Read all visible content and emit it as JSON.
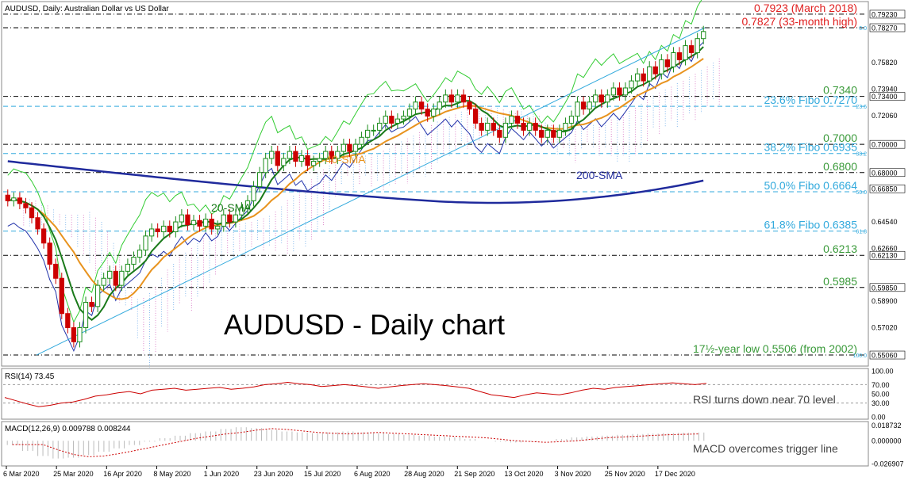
{
  "header": {
    "symbol_label": "AUDUSD, Daily:  Australian Dollar vs US Dollar",
    "big_title": "AUDUSD - Daily chart"
  },
  "colors": {
    "candle_up": "#1a8c1a",
    "candle_down": "#cc0000",
    "sma20": "#1a7a1a",
    "sma40": "#e8931e",
    "sma200": "#1f2a9c",
    "trendline": "#33aadd",
    "fibo": "#33aadd",
    "red_label": "#e02020",
    "green_label": "#3a9a3a",
    "rsi": "#cc0000",
    "macd_signal": "#cc0000",
    "cloud_blue": "#88bbee",
    "cloud_pink": "#dd88cc",
    "envelope_green": "#33cc33"
  },
  "chart_data": [
    {
      "type": "candlestick",
      "panel": "price",
      "ylim": [
        0.545,
        0.799
      ],
      "y_ticks": [
        "0.79230",
        "0.78270",
        "0.75820",
        "0.73940",
        "0.73400",
        "0.72060",
        "0.70000",
        "0.68000",
        "0.66850",
        "0.64540",
        "0.62660",
        "0.62130",
        "0.59850",
        "0.58900",
        "0.57020",
        "0.55060"
      ],
      "y_tick_values": [
        0.7923,
        0.7827,
        0.7582,
        0.7394,
        0.734,
        0.7206,
        0.7,
        0.68,
        0.6685,
        0.6454,
        0.6266,
        0.6213,
        0.5985,
        0.589,
        0.5702,
        0.5506
      ],
      "x_ticks": [
        "6 Mar 2020",
        "25 Mar 2020",
        "16 Apr 2020",
        "8 May 2020",
        "1 Jun 2020",
        "23 Jun 2020",
        "15 Jul 2020",
        "6 Aug 2020",
        "28 Aug 2020",
        "21 Sep 2020",
        "13 Oct 2020",
        "3 Nov 2020",
        "25 Nov 2020",
        "17 Dec 2020"
      ],
      "series": [
        {
          "name": "Close",
          "close": [
            0.66,
            0.662,
            0.658,
            0.655,
            0.648,
            0.64,
            0.63,
            0.615,
            0.605,
            0.58,
            0.57,
            0.56,
            0.57,
            0.588,
            0.585,
            0.6,
            0.605,
            0.61,
            0.6,
            0.61,
            0.615,
            0.62,
            0.625,
            0.635,
            0.64,
            0.638,
            0.642,
            0.638,
            0.645,
            0.65,
            0.643,
            0.646,
            0.642,
            0.647,
            0.64,
            0.642,
            0.65,
            0.645,
            0.65,
            0.655,
            0.66,
            0.67,
            0.68,
            0.69,
            0.695,
            0.685,
            0.69,
            0.695,
            0.688,
            0.692,
            0.685,
            0.688,
            0.69,
            0.695,
            0.69,
            0.695,
            0.7,
            0.695,
            0.7,
            0.705,
            0.71,
            0.71,
            0.715,
            0.72,
            0.715,
            0.718,
            0.72,
            0.725,
            0.73,
            0.725,
            0.72,
            0.725,
            0.73,
            0.735,
            0.73,
            0.735,
            0.73,
            0.725,
            0.715,
            0.71,
            0.715,
            0.71,
            0.705,
            0.715,
            0.72,
            0.715,
            0.71,
            0.715,
            0.71,
            0.705,
            0.71,
            0.705,
            0.71,
            0.715,
            0.72,
            0.73,
            0.725,
            0.73,
            0.735,
            0.73,
            0.735,
            0.74,
            0.735,
            0.74,
            0.745,
            0.75,
            0.745,
            0.755,
            0.75,
            0.76,
            0.755,
            0.765,
            0.76,
            0.77,
            0.765,
            0.775,
            0.78
          ]
        },
        {
          "name": "20-SMA"
        },
        {
          "name": "40-SMA"
        },
        {
          "name": "200-SMA"
        }
      ]
    },
    {
      "type": "line",
      "panel": "rsi",
      "ylim": [
        0,
        100
      ],
      "y_ticks": [
        "100.00",
        "70.00",
        "50.00",
        "30.00",
        "0.00"
      ],
      "y_tick_values": [
        100,
        70,
        50,
        30,
        0
      ],
      "series": [
        {
          "name": "RSI(14) 73.45",
          "values": [
            42,
            35,
            28,
            22,
            25,
            30,
            32,
            38,
            45,
            48,
            52,
            55,
            50,
            58,
            60,
            62,
            58,
            60,
            62,
            64,
            60,
            62,
            65,
            70,
            72,
            75,
            72,
            70,
            66,
            68,
            70,
            68,
            65,
            62,
            65,
            68,
            70,
            72,
            70,
            68,
            65,
            62,
            55,
            48,
            45,
            42,
            48,
            52,
            50,
            48,
            52,
            58,
            62,
            60,
            64,
            66,
            68,
            70,
            72,
            74,
            72,
            70,
            73
          ]
        }
      ]
    },
    {
      "type": "bar",
      "panel": "macd",
      "ylim": [
        -0.027,
        0.019
      ],
      "y_ticks": [
        "0.018732",
        "0.000000",
        "-0.026907"
      ],
      "y_tick_values": [
        0.018732,
        0,
        -0.026907
      ],
      "series": [
        {
          "name": "MACD(12,26,9) 0.009788 0.008244",
          "values": [
            -0.005,
            -0.012,
            -0.018,
            -0.021,
            -0.02,
            -0.017,
            -0.013,
            -0.009,
            -0.005,
            -0.001,
            0.003,
            0.006,
            0.009,
            0.011,
            0.014,
            0.016,
            0.015,
            0.013,
            0.011,
            0.01,
            0.009,
            0.01,
            0.011,
            0.01,
            0.009,
            0.008,
            0.007,
            0.006,
            0.005,
            0.004,
            0.002,
            0.0,
            -0.001,
            -0.002,
            -0.001,
            0.0,
            0.002,
            0.004,
            0.005,
            0.006,
            0.007,
            0.008,
            0.0085,
            0.009,
            0.0095,
            0.0098
          ]
        }
      ]
    }
  ],
  "levels": [
    {
      "label": "0.7923 (March 2018)",
      "value": 0.7923,
      "color": "red"
    },
    {
      "label": "0.7827 (33-month high)",
      "value": 0.7827,
      "color": "red",
      "fibo_tag": "0.0"
    },
    {
      "label": "0.7340",
      "value": 0.734,
      "color": "green"
    },
    {
      "label": "23.6% Fibo 0.7270",
      "value": 0.727,
      "color": "fibo",
      "fibo_tag": "23.6"
    },
    {
      "label": "0.7000",
      "value": 0.7,
      "color": "green"
    },
    {
      "label": "38.2% Fibo 0.6935",
      "value": 0.6935,
      "color": "fibo",
      "fibo_tag": "38.2"
    },
    {
      "label": "0.6800",
      "value": 0.68,
      "color": "green"
    },
    {
      "label": "50.0% Fibo 0.6664",
      "value": 0.6664,
      "color": "fibo",
      "fibo_tag": "50.0"
    },
    {
      "label": "61.8% Fibo 0.6385",
      "value": 0.6385,
      "color": "fibo",
      "fibo_tag": "61.8"
    },
    {
      "label": "0.6213",
      "value": 0.6213,
      "color": "green"
    },
    {
      "label": "0.5985",
      "value": 0.5985,
      "color": "green"
    },
    {
      "label": "17½-year low 0.5506 (from 2002)",
      "value": 0.5506,
      "color": "green",
      "fibo_tag": "100.0"
    }
  ],
  "annotations": {
    "sma20_label": "20-SMA",
    "sma40_label": "40-SMA",
    "sma200_label": "200-SMA",
    "rsi_note": "RSI turns down near 70 level",
    "macd_note": "MACD overcomes trigger line"
  }
}
